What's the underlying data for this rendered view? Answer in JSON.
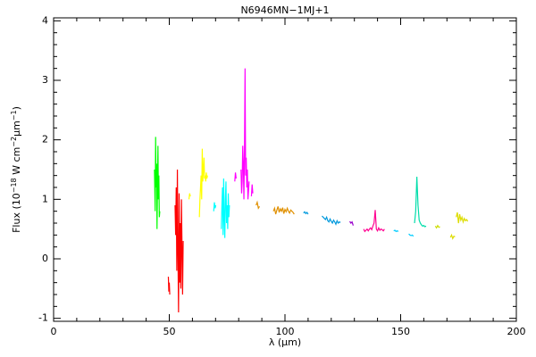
{
  "chart_data": {
    "type": "line",
    "title": "N6946MN−1MJ+1",
    "xlabel": "λ (μm)",
    "ylabel": [
      {
        "text": "Flux (10",
        "sup": false
      },
      {
        "text": "−18",
        "sup": true
      },
      {
        "text": " W cm",
        "sup": false
      },
      {
        "text": "−2",
        "sup": true
      },
      {
        "text": "μm",
        "sup": false
      },
      {
        "text": "−1",
        "sup": true
      },
      {
        "text": ")",
        "sup": false
      }
    ],
    "xlim": [
      0,
      200
    ],
    "ylim": [
      -1.05,
      4.05
    ],
    "xticks": [
      0,
      50,
      100,
      150,
      200
    ],
    "yticks": [
      -1,
      0,
      1,
      2,
      3,
      4
    ],
    "xminor": 5,
    "yminor": 5,
    "series": [
      {
        "color": "#00ff00",
        "x": [
          43.6,
          43.9,
          44.1,
          44.3,
          44.5,
          44.7,
          44.9,
          45.1,
          45.3,
          45.5,
          45.7,
          45.9
        ],
        "values": [
          1.5,
          0.8,
          2.05,
          1.2,
          1.6,
          0.5,
          1.3,
          1.9,
          1.0,
          1.4,
          0.7,
          0.8
        ]
      },
      {
        "color": "#ff0000",
        "x": [
          49.6,
          49.8,
          50.0,
          50.2
        ],
        "values": [
          -0.3,
          -0.55,
          -0.4,
          -0.6
        ]
      },
      {
        "color": "#ff0000",
        "x": [
          52.5,
          52.75,
          53,
          53.25,
          53.5,
          53.75,
          54,
          54.25,
          54.5,
          54.75,
          55,
          55.25,
          55.5,
          55.75,
          56
        ],
        "values": [
          0.9,
          0.4,
          1.2,
          -0.2,
          1.5,
          0.1,
          -0.9,
          1.1,
          -0.4,
          0.6,
          -0.5,
          1.0,
          0.2,
          -0.6,
          0.3
        ]
      },
      {
        "color": "#ffff00",
        "x": [
          58.5,
          58.8,
          59.1
        ],
        "values": [
          1.0,
          1.1,
          1.05
        ]
      },
      {
        "color": "#ffff00",
        "x": [
          63,
          63.25,
          63.5,
          63.75,
          64,
          64.25,
          64.5,
          64.75,
          65,
          65.25,
          65.5,
          65.75,
          66,
          66.25,
          66.5
        ],
        "values": [
          0.7,
          1.0,
          1.2,
          1.4,
          1.0,
          1.85,
          1.3,
          1.5,
          1.7,
          1.35,
          1.4,
          1.3,
          1.45,
          1.35,
          1.4
        ]
      },
      {
        "color": "#00ffff",
        "x": [
          69.2,
          69.5,
          69.8,
          70.1
        ],
        "values": [
          0.8,
          0.95,
          0.85,
          0.9
        ]
      },
      {
        "color": "#00ffff",
        "x": [
          72.5,
          72.75,
          73,
          73.25,
          73.5,
          73.75,
          74,
          74.25,
          74.5,
          74.75,
          75,
          75.25,
          75.5,
          75.75,
          76
        ],
        "values": [
          0.5,
          0.9,
          1.2,
          0.4,
          1.35,
          0.7,
          0.35,
          1.0,
          1.3,
          0.6,
          0.9,
          0.5,
          1.1,
          0.7,
          0.9
        ]
      },
      {
        "color": "#ff00ff",
        "x": [
          78.3,
          78.6,
          78.9
        ],
        "values": [
          1.3,
          1.45,
          1.35
        ]
      },
      {
        "color": "#ff00ff",
        "x": [
          81,
          81.25,
          81.5,
          81.75,
          82,
          82.25,
          82.5,
          82.75,
          83,
          83.25,
          83.5,
          83.75,
          84,
          84.25,
          84.5
        ],
        "values": [
          1.5,
          1.1,
          1.3,
          1.9,
          1.6,
          1.0,
          1.8,
          3.2,
          1.4,
          1.7,
          1.2,
          1.5,
          1.0,
          1.15,
          1.3
        ]
      },
      {
        "color": "#ff00ff",
        "x": [
          85.5,
          85.8,
          86.1
        ],
        "values": [
          1.05,
          1.25,
          1.1
        ]
      },
      {
        "color": "#e09000",
        "x": [
          87.5,
          88,
          88.5,
          89
        ],
        "values": [
          0.9,
          0.95,
          0.85,
          0.88
        ]
      },
      {
        "color": "#e09000",
        "x": [
          95,
          95.5,
          96,
          96.5,
          97,
          97.5,
          98,
          98.5,
          99,
          99.5,
          100,
          100.5,
          101,
          101.5,
          102,
          102.5,
          103,
          103.5,
          104
        ],
        "values": [
          0.8,
          0.85,
          0.75,
          0.82,
          0.88,
          0.78,
          0.84,
          0.8,
          0.86,
          0.76,
          0.83,
          0.79,
          0.85,
          0.8,
          0.77,
          0.82,
          0.8,
          0.78,
          0.75
        ]
      },
      {
        "color": "#0099dd",
        "x": [
          108,
          108.5,
          109,
          109.5,
          110
        ],
        "values": [
          0.77,
          0.79,
          0.76,
          0.78,
          0.75
        ]
      },
      {
        "color": "#0099dd",
        "x": [
          116,
          116.5,
          117,
          117.5,
          118,
          118.5,
          119,
          119.5,
          120,
          120.5,
          121,
          121.5,
          122,
          122.5,
          123,
          123.5,
          124
        ],
        "values": [
          0.72,
          0.7,
          0.68,
          0.66,
          0.7,
          0.64,
          0.62,
          0.67,
          0.63,
          0.6,
          0.65,
          0.62,
          0.58,
          0.64,
          0.6,
          0.62,
          0.61
        ]
      },
      {
        "color": "#9900cc",
        "x": [
          128,
          128.5,
          129,
          129.5
        ],
        "values": [
          0.63,
          0.6,
          0.62,
          0.56
        ]
      },
      {
        "color": "#ff0090",
        "x": [
          134,
          134.5,
          135,
          135.5,
          136,
          136.5,
          137,
          137.5,
          138,
          138.5,
          139,
          139.5,
          140,
          140.5,
          141,
          141.5,
          142,
          142.5,
          143
        ],
        "values": [
          0.5,
          0.46,
          0.48,
          0.5,
          0.47,
          0.5,
          0.52,
          0.49,
          0.55,
          0.6,
          0.82,
          0.5,
          0.47,
          0.52,
          0.48,
          0.5,
          0.49,
          0.47,
          0.5
        ]
      },
      {
        "color": "#00ccff",
        "x": [
          147,
          147.5,
          148,
          148.5,
          149
        ],
        "values": [
          0.47,
          0.48,
          0.46,
          0.47,
          0.46
        ]
      },
      {
        "color": "#00ccff",
        "x": [
          153.5,
          154,
          154.5,
          155,
          155.5
        ],
        "values": [
          0.42,
          0.4,
          0.39,
          0.4,
          0.38
        ]
      },
      {
        "color": "#00ddaa",
        "x": [
          156,
          156.5,
          157,
          157.5,
          158,
          158.5,
          159,
          159.5,
          160,
          160.5,
          161
        ],
        "values": [
          0.6,
          0.8,
          1.38,
          0.9,
          0.65,
          0.6,
          0.57,
          0.55,
          0.56,
          0.54,
          0.55
        ]
      },
      {
        "color": "#ccdd00",
        "x": [
          165,
          165.5,
          166,
          166.5,
          167
        ],
        "values": [
          0.55,
          0.52,
          0.56,
          0.53,
          0.54
        ]
      },
      {
        "color": "#dddd00",
        "x": [
          171.5,
          172,
          172.5,
          173,
          173.5
        ],
        "values": [
          0.36,
          0.4,
          0.34,
          0.38,
          0.37
        ]
      },
      {
        "color": "#dddd00",
        "x": [
          174,
          174.5,
          175,
          175.5,
          176,
          176.5,
          177,
          177.5,
          178,
          178.5,
          179
        ],
        "values": [
          0.7,
          0.78,
          0.6,
          0.75,
          0.65,
          0.7,
          0.62,
          0.68,
          0.64,
          0.66,
          0.63
        ]
      }
    ]
  }
}
